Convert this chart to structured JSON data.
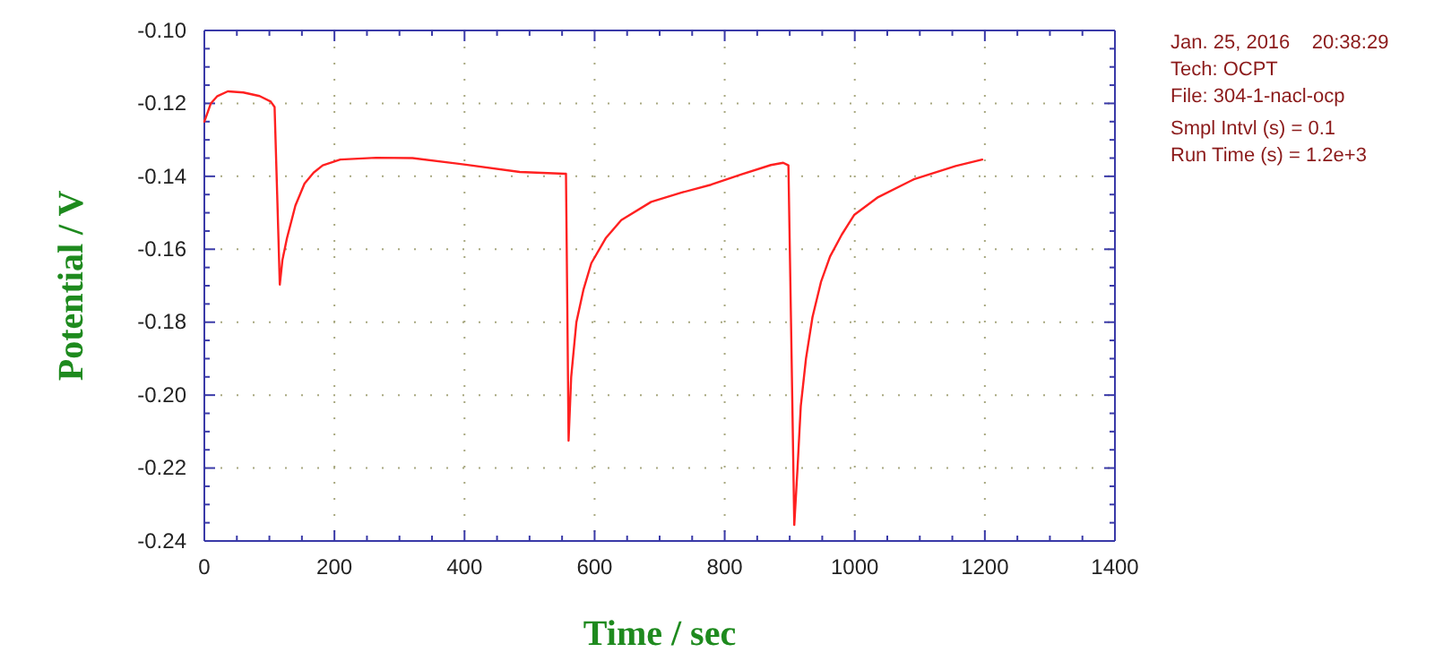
{
  "chart_data": {
    "type": "line",
    "xlabel": "Time / sec",
    "ylabel": "Potential / V",
    "xlim": [
      0,
      1400
    ],
    "xticks": [
      0,
      200,
      400,
      600,
      800,
      1000,
      1200,
      1400
    ],
    "ylim": [
      -0.24,
      -0.1
    ],
    "yticks": [
      -0.24,
      -0.22,
      {
        "value": -0.2,
        "label": "-0.20"
      },
      -0.18,
      -0.16,
      -0.14,
      -0.12,
      {
        "value": -0.1,
        "label": "-0.10"
      }
    ],
    "grid": true,
    "marker": "none",
    "line_style": "solid",
    "annotations": [
      "Jan. 25, 2016    20:38:29",
      "Tech: OCPT",
      "File: 304-1-nacl-ocp",
      "Smpl Intvl (s) = 0.1",
      "Run Time (s) = 1.2e+3"
    ],
    "series": [
      {
        "color": "#ff2020",
        "x": [
          0,
          10,
          20,
          36,
          60,
          85,
          102,
          108,
          112,
          116,
          120,
          127,
          140,
          154,
          168,
          182,
          209,
          264,
          320,
          402,
          485,
          554,
          556,
          558,
          560,
          564,
          572,
          583,
          595,
          617,
          641,
          687,
          733,
          779,
          825,
          871,
          890,
          898,
          902,
          907,
          912,
          917,
          925,
          935,
          948,
          962,
          980,
          999,
          1036,
          1091,
          1155,
          1196
        ],
        "values": [
          -0.125,
          -0.12,
          -0.118,
          -0.1167,
          -0.117,
          -0.118,
          -0.1195,
          -0.121,
          -0.145,
          -0.1697,
          -0.163,
          -0.157,
          -0.148,
          -0.142,
          -0.139,
          -0.137,
          -0.1354,
          -0.1349,
          -0.135,
          -0.1368,
          -0.1388,
          -0.1393,
          -0.1393,
          -0.175,
          -0.2125,
          -0.195,
          -0.18,
          -0.171,
          -0.1638,
          -0.157,
          -0.152,
          -0.147,
          -0.1445,
          -0.1423,
          -0.1395,
          -0.1369,
          -0.1363,
          -0.137,
          -0.18,
          -0.2356,
          -0.22,
          -0.203,
          -0.19,
          -0.1786,
          -0.169,
          -0.162,
          -0.156,
          -0.1506,
          -0.1457,
          -0.1408,
          -0.1372,
          -0.1354
        ]
      }
    ]
  }
}
